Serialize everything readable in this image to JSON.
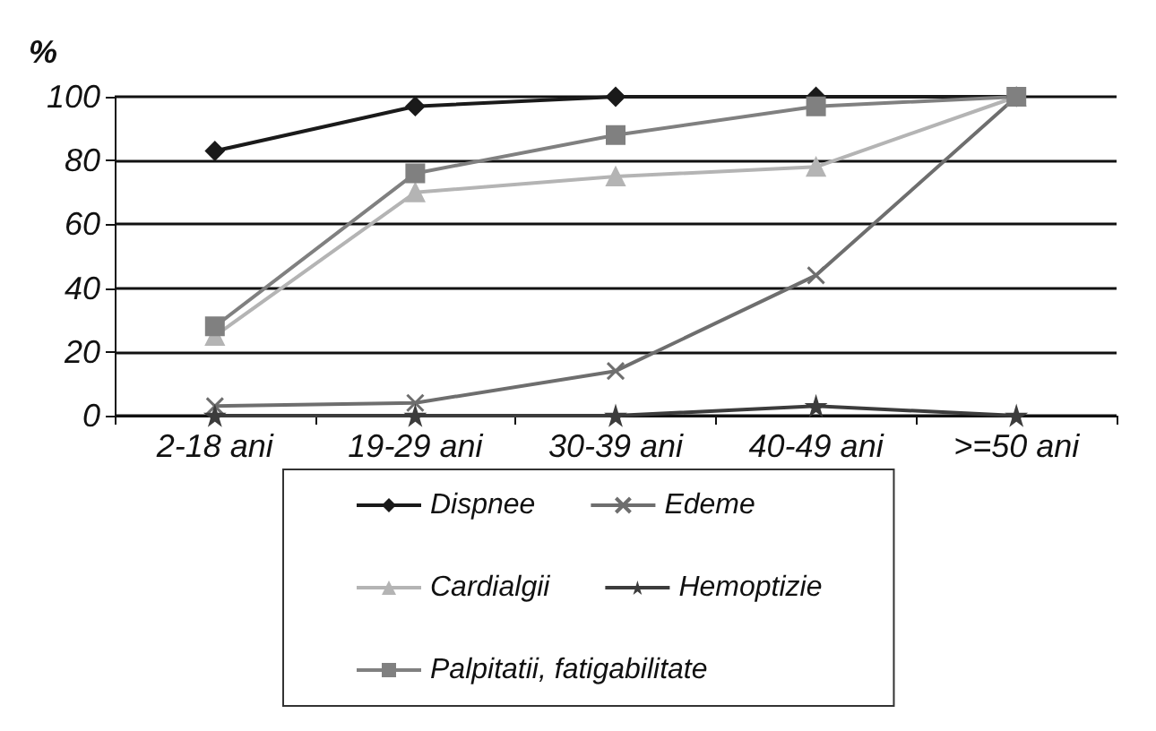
{
  "chart_data": {
    "type": "line",
    "ylabel": "%",
    "categories": [
      "2-18 ani",
      "19-29 ani",
      "30-39 ani",
      "40-49 ani",
      ">=50 ani"
    ],
    "series": [
      {
        "name": "Dispnee",
        "color": "#1a1a1a",
        "marker": "diamond",
        "values": [
          83,
          97,
          100,
          100,
          100
        ]
      },
      {
        "name": "Edeme",
        "color": "#6e6e6e",
        "marker": "cross",
        "values": [
          3,
          4,
          14,
          44,
          100
        ]
      },
      {
        "name": "Cardialgii",
        "color": "#b4b4b4",
        "marker": "triangle",
        "values": [
          25,
          70,
          75,
          78,
          100
        ]
      },
      {
        "name": "Hemoptizie",
        "color": "#3c3c3c",
        "marker": "star",
        "values": [
          0,
          0,
          0,
          3,
          0
        ]
      },
      {
        "name": "Palpitatii, fatigabilitate",
        "color": "#808080",
        "marker": "square",
        "values": [
          28,
          76,
          88,
          97,
          100
        ]
      }
    ],
    "ylim": [
      0,
      100
    ],
    "yticks": [
      0,
      20,
      40,
      60,
      80,
      100
    ],
    "grid": "y",
    "legend": "bottom"
  }
}
